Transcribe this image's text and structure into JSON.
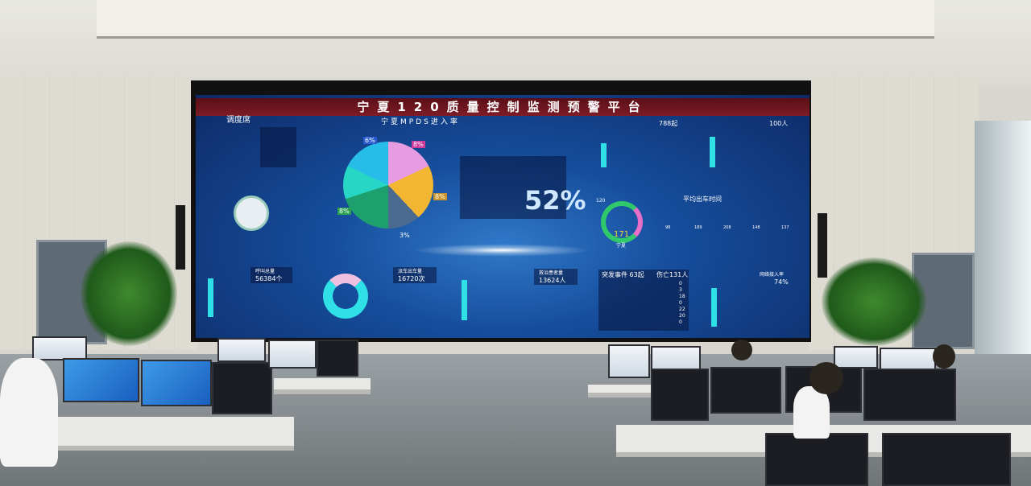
{
  "screen": {
    "title": "宁夏120质量控制监测预警平台",
    "dispatch_label": "调度席",
    "mpds_title": "宁夏MPDS进入率",
    "mpds_rate": "52%",
    "pie_labels": [
      "6%",
      "8%",
      "8%",
      "8%",
      "3%"
    ],
    "top_right_total_1": "788起",
    "top_right_total_2": "100人",
    "avg_dispatch_title": "平均出车时间",
    "gauge_main_value": "171",
    "gauge_main_max": "120",
    "gauge_main_label": "宁夏",
    "small_gauge_values": [
      "98",
      "189",
      "208",
      "148",
      "137"
    ],
    "calls_title": "呼叫总量",
    "calls_value": "56384个",
    "dispatch_count_title": "派车出车量",
    "dispatch_count_value": "16720次",
    "patients_title": "救治患者量",
    "patients_value": "13624人",
    "incident_title": "突发事件 63起",
    "incident_casualties": "伤亡131人",
    "incident_rows": [
      "0",
      "3",
      "18",
      "0",
      "22",
      "20",
      "0"
    ],
    "entry_rate_title": "网络接入率",
    "entry_rate_value": "74%",
    "colors": {
      "title_bar": "#7e1c26",
      "screen_bg": "#164d9c",
      "cyan": "#2fe0e6",
      "pink": "#e86fc8",
      "yellow": "#f0c030"
    }
  }
}
